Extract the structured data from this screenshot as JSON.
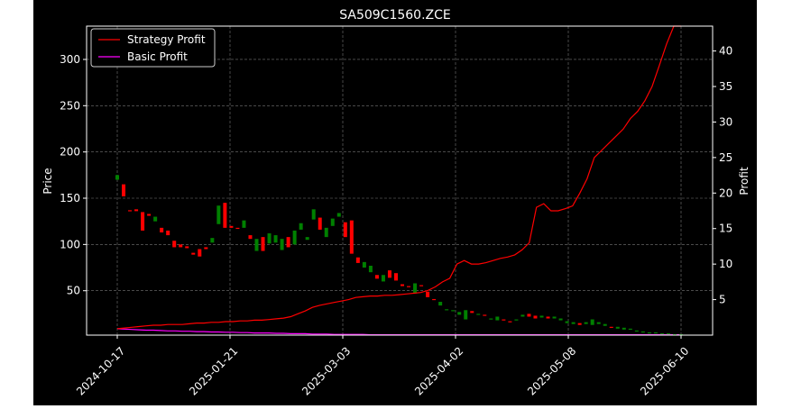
{
  "chart_data": {
    "type": "candlestick",
    "title": "SA509C1560.ZCE",
    "ylabel_left": "Price",
    "ylabel_right": "Profit",
    "xlabel": "",
    "ylim_left": [
      2,
      336
    ],
    "ylim_right": [
      0,
      43.5
    ],
    "yticks_left": [
      50,
      100,
      150,
      200,
      250,
      300
    ],
    "yticks_right": [
      5,
      10,
      15,
      20,
      25,
      30,
      35,
      40
    ],
    "xtick_labels": [
      "2024-10-17",
      "2025-01-21",
      "2025-03-03",
      "2025-04-02",
      "2025-05-08",
      "2025-06-10"
    ],
    "grid": true,
    "legend_position": "upper-left",
    "colors": {
      "up": "#008000",
      "down": "#ff0000",
      "strategy": "#ff0000",
      "basic": "#ff00ff",
      "background": "#000000",
      "text": "#ffffff"
    },
    "series": [
      {
        "name": "Strategy Profit",
        "axis": "right",
        "values": [
          0.9,
          1.0,
          1.1,
          1.2,
          1.3,
          1.4,
          1.4,
          1.5,
          1.5,
          1.5,
          1.6,
          1.7,
          1.7,
          1.8,
          1.8,
          1.9,
          1.9,
          2.0,
          2.0,
          2.1,
          2.1,
          2.2,
          2.3,
          2.4,
          2.6,
          3.0,
          3.4,
          3.9,
          4.2,
          4.4,
          4.6,
          4.8,
          5.0,
          5.3,
          5.4,
          5.5,
          5.5,
          5.6,
          5.6,
          5.7,
          5.8,
          5.9,
          6.0,
          6.3,
          6.8,
          7.5,
          8.0,
          10.0,
          10.5,
          10.0,
          10.0,
          10.2,
          10.5,
          10.8,
          11.0,
          11.3,
          12.0,
          13.0,
          18.0,
          18.5,
          17.5,
          17.5,
          17.8,
          18.2,
          20.0,
          22.0,
          25.0,
          26.0,
          27.0,
          28.0,
          29.0,
          30.5,
          31.5,
          33.0,
          35.0,
          38.0,
          41.0,
          43.5,
          43.5
        ]
      },
      {
        "name": "Basic Profit",
        "axis": "right",
        "values": [
          0.9,
          0.85,
          0.8,
          0.75,
          0.7,
          0.7,
          0.65,
          0.6,
          0.6,
          0.55,
          0.55,
          0.5,
          0.5,
          0.45,
          0.45,
          0.4,
          0.4,
          0.35,
          0.35,
          0.3,
          0.3,
          0.3,
          0.25,
          0.25,
          0.2,
          0.2,
          0.2,
          0.15,
          0.15,
          0.15,
          0.1,
          0.1,
          0.1,
          0.1,
          0.1,
          0.05,
          0.05,
          0.05,
          0.05,
          0.05,
          0.05,
          0.05,
          0.05,
          0.05,
          0.05,
          0.05,
          0.05,
          0.05,
          0.05,
          0.05,
          0.05,
          0.05,
          0.05,
          0.05,
          0.05,
          0.05,
          0.05,
          0.05,
          0.05,
          0.05,
          0.05,
          0.05,
          0.05,
          0.05,
          0.05,
          0.05,
          0.05,
          0.05,
          0.05,
          0.05,
          0.05,
          0.05,
          0.05,
          0.05,
          0.05,
          0.05,
          0.05,
          0.05,
          0.05
        ]
      }
    ],
    "candles": [
      {
        "o": 170,
        "c": 175
      },
      {
        "o": 165,
        "c": 152
      },
      {
        "o": 137,
        "c": 136
      },
      {
        "o": 138,
        "c": 136
      },
      {
        "o": 135,
        "c": 115
      },
      {
        "o": 133,
        "c": 131
      },
      {
        "o": 125,
        "c": 130
      },
      {
        "o": 118,
        "c": 113
      },
      {
        "o": 115,
        "c": 110
      },
      {
        "o": 104,
        "c": 97
      },
      {
        "o": 100,
        "c": 97
      },
      {
        "o": 98,
        "c": 96
      },
      {
        "o": 91,
        "c": 89
      },
      {
        "o": 95,
        "c": 87
      },
      {
        "o": 97,
        "c": 95
      },
      {
        "o": 102,
        "c": 107
      },
      {
        "o": 122,
        "c": 142
      },
      {
        "o": 145,
        "c": 118
      },
      {
        "o": 120,
        "c": 118
      },
      {
        "o": 118,
        "c": 117
      },
      {
        "o": 118,
        "c": 126
      },
      {
        "o": 110,
        "c": 106
      },
      {
        "o": 93,
        "c": 106
      },
      {
        "o": 108,
        "c": 93
      },
      {
        "o": 101,
        "c": 112
      },
      {
        "o": 102,
        "c": 110
      },
      {
        "o": 94,
        "c": 106
      },
      {
        "o": 108,
        "c": 97
      },
      {
        "o": 100,
        "c": 115
      },
      {
        "o": 116,
        "c": 123
      },
      {
        "o": 105,
        "c": 108
      },
      {
        "o": 127,
        "c": 138
      },
      {
        "o": 129,
        "c": 116
      },
      {
        "o": 108,
        "c": 118
      },
      {
        "o": 120,
        "c": 128
      },
      {
        "o": 130,
        "c": 134
      },
      {
        "o": 124,
        "c": 108
      },
      {
        "o": 126,
        "c": 90
      },
      {
        "o": 86,
        "c": 80
      },
      {
        "o": 75,
        "c": 81
      },
      {
        "o": 70,
        "c": 77
      },
      {
        "o": 67,
        "c": 63
      },
      {
        "o": 60,
        "c": 67
      },
      {
        "o": 72,
        "c": 64
      },
      {
        "o": 69,
        "c": 61
      },
      {
        "o": 57,
        "c": 55
      },
      {
        "o": 55,
        "c": 54
      },
      {
        "o": 47,
        "c": 58
      },
      {
        "o": 56,
        "c": 55
      },
      {
        "o": 49,
        "c": 43
      },
      {
        "o": 41,
        "c": 40
      },
      {
        "o": 34,
        "c": 38
      },
      {
        "o": 30,
        "c": 30
      },
      {
        "o": 28,
        "c": 29
      },
      {
        "o": 24,
        "c": 27
      },
      {
        "o": 19,
        "c": 29
      },
      {
        "o": 28,
        "c": 26
      },
      {
        "o": 24,
        "c": 25
      },
      {
        "o": 24,
        "c": 23
      },
      {
        "o": 19,
        "c": 20
      },
      {
        "o": 18,
        "c": 22
      },
      {
        "o": 19,
        "c": 18
      },
      {
        "o": 17,
        "c": 16
      },
      {
        "o": 18,
        "c": 19
      },
      {
        "o": 22,
        "c": 24
      },
      {
        "o": 25,
        "c": 22
      },
      {
        "o": 23,
        "c": 20
      },
      {
        "o": 21,
        "c": 23
      },
      {
        "o": 22,
        "c": 20
      },
      {
        "o": 20,
        "c": 22
      },
      {
        "o": 18,
        "c": 20
      },
      {
        "o": 15,
        "c": 17
      },
      {
        "o": 14,
        "c": 16
      },
      {
        "o": 15,
        "c": 13
      },
      {
        "o": 14,
        "c": 16
      },
      {
        "o": 13,
        "c": 19
      },
      {
        "o": 14,
        "c": 16
      },
      {
        "o": 12,
        "c": 14
      },
      {
        "o": 11,
        "c": 10
      },
      {
        "o": 9,
        "c": 11
      },
      {
        "o": 8,
        "c": 10
      },
      {
        "o": 8,
        "c": 9
      },
      {
        "o": 7,
        "c": 7
      },
      {
        "o": 6,
        "c": 6
      },
      {
        "o": 5,
        "c": 5
      },
      {
        "o": 5,
        "c": 5
      },
      {
        "o": 4,
        "c": 4
      },
      {
        "o": 4,
        "c": 4
      },
      {
        "o": 3,
        "c": 3
      },
      {
        "o": 3,
        "c": 3
      }
    ]
  }
}
